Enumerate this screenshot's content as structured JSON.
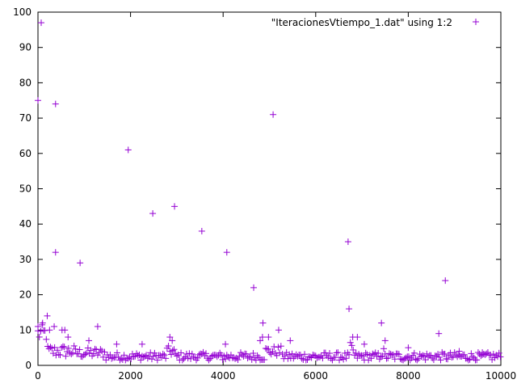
{
  "chart_data": {
    "type": "scatter",
    "title": "",
    "xlabel": "",
    "ylabel": "",
    "xlim": [
      0,
      10000
    ],
    "ylim": [
      0,
      100
    ],
    "x_ticks": [
      0,
      2000,
      4000,
      6000,
      8000,
      10000
    ],
    "y_ticks": [
      0,
      10,
      20,
      30,
      40,
      50,
      60,
      70,
      80,
      90,
      100
    ],
    "grid": false,
    "legend_position": "top-right",
    "marker": "+",
    "series": [
      {
        "name": "\"IteracionesVtiempo_1.dat\" using 1:2",
        "color": "#9400d3",
        "points": [
          [
            0,
            75
          ],
          [
            70,
            97
          ],
          [
            380,
            74
          ],
          [
            380,
            32
          ],
          [
            910,
            29
          ],
          [
            1950,
            61
          ],
          [
            2480,
            43
          ],
          [
            2950,
            45
          ],
          [
            3540,
            38
          ],
          [
            4080,
            32
          ],
          [
            4660,
            22
          ],
          [
            5080,
            71
          ],
          [
            6700,
            35
          ],
          [
            6720,
            16
          ],
          [
            7420,
            12
          ],
          [
            8660,
            9
          ],
          [
            8800,
            24
          ],
          [
            200,
            14
          ],
          [
            1290,
            11
          ],
          [
            4860,
            12
          ],
          [
            5200,
            10
          ],
          [
            350,
            11
          ],
          [
            0,
            11
          ],
          [
            100,
            12
          ],
          [
            250,
            10
          ],
          [
            520,
            10
          ],
          [
            580,
            10
          ],
          [
            650,
            8
          ],
          [
            1100,
            7
          ],
          [
            1700,
            6
          ],
          [
            2250,
            6
          ],
          [
            2850,
            8
          ],
          [
            2900,
            7
          ],
          [
            4050,
            6
          ],
          [
            4800,
            7
          ],
          [
            4850,
            8
          ],
          [
            4980,
            8
          ],
          [
            5450,
            7
          ],
          [
            6800,
            8
          ],
          [
            6900,
            8
          ],
          [
            7050,
            6
          ],
          [
            7500,
            7
          ],
          [
            8000,
            5
          ],
          [
            9100,
            4
          ],
          [
            9600,
            3
          ]
        ]
      }
    ]
  }
}
